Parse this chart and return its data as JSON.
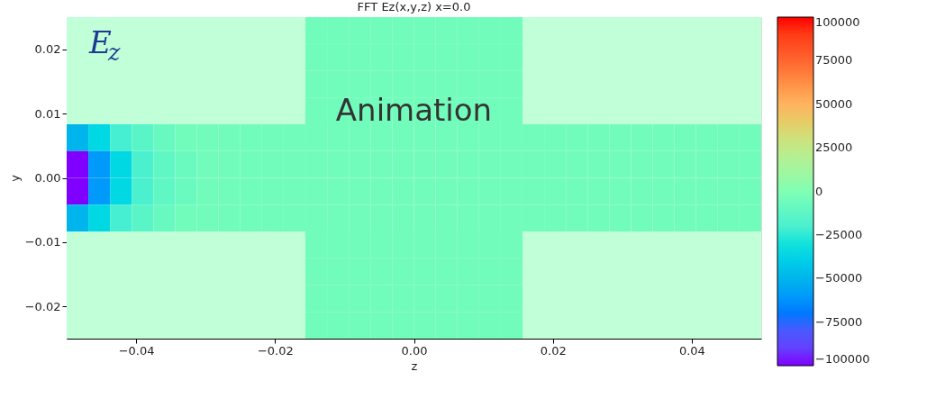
{
  "chart_data": {
    "type": "heatmap",
    "title": "FFT Ez(x,y,z) x=0.0",
    "xlabel": "z",
    "ylabel": "y",
    "x": [
      -0.0484375,
      -0.0453125,
      -0.0421875,
      -0.0390625,
      -0.0359375,
      -0.0328125,
      -0.0296875,
      -0.0265625,
      -0.0234375,
      -0.0203125,
      -0.0171875,
      -0.0140625,
      -0.0109375,
      -0.0078125,
      -0.0046875,
      -0.0015625,
      0.0015625,
      0.0046875,
      0.0078125,
      0.0109375,
      0.0140625,
      0.0171875,
      0.0203125,
      0.0234375,
      0.0265625,
      0.0296875,
      0.0328125,
      0.0359375,
      0.0390625,
      0.0421875,
      0.0453125,
      0.0484375
    ],
    "y": [
      0.022917,
      0.01875,
      0.014583,
      0.010417,
      0.00625,
      0.002083,
      -0.002083,
      -0.00625,
      -0.010417,
      -0.014583,
      -0.01875,
      -0.022917
    ],
    "cells": [
      [
        null,
        null,
        null,
        null,
        null,
        null,
        null,
        null,
        null,
        null,
        null,
        -5000,
        -5000,
        -5000,
        -5000,
        -5000,
        -5000,
        -5000,
        -5000,
        -5000,
        -5000,
        null,
        null,
        null,
        null,
        null,
        null,
        null,
        null,
        null,
        null,
        null
      ],
      [
        null,
        null,
        null,
        null,
        null,
        null,
        null,
        null,
        null,
        null,
        null,
        -5000,
        -5000,
        -5000,
        -5000,
        -5000,
        -5000,
        -5000,
        -5000,
        -5000,
        -5000,
        null,
        null,
        null,
        null,
        null,
        null,
        null,
        null,
        null,
        null,
        null
      ],
      [
        null,
        null,
        null,
        null,
        null,
        null,
        null,
        null,
        null,
        null,
        null,
        -5000,
        -5000,
        -5000,
        -5000,
        -5000,
        -5000,
        -5000,
        -5000,
        -5000,
        -5000,
        null,
        null,
        null,
        null,
        null,
        null,
        null,
        null,
        null,
        null,
        null
      ],
      [
        null,
        null,
        null,
        null,
        null,
        null,
        null,
        null,
        null,
        null,
        null,
        -5000,
        -5000,
        -5000,
        -5000,
        -5000,
        -5000,
        -5000,
        -5000,
        -5000,
        -5000,
        null,
        null,
        null,
        null,
        null,
        null,
        null,
        null,
        null,
        null,
        null
      ],
      [
        -50000,
        -35000,
        -22000,
        -14000,
        -9000,
        -5000,
        -5000,
        -5000,
        -5000,
        -5000,
        -5000,
        -5000,
        -5000,
        -5000,
        -5000,
        -5000,
        -5000,
        -5000,
        -5000,
        -5000,
        -5000,
        -5000,
        -5000,
        -5000,
        -5000,
        -5000,
        -5000,
        -5000,
        -5000,
        -5000,
        -5000,
        -5000
      ],
      [
        -100000,
        -60000,
        -35000,
        -20000,
        -12000,
        -8000,
        -5000,
        -5000,
        -5000,
        -5000,
        -5000,
        -5000,
        -5000,
        -5000,
        -5000,
        -5000,
        -5000,
        -5000,
        -5000,
        -5000,
        -5000,
        -5000,
        -5000,
        -5000,
        -5000,
        -5000,
        -5000,
        -5000,
        -5000,
        -5000,
        -5000,
        -5000
      ],
      [
        -100000,
        -60000,
        -35000,
        -20000,
        -12000,
        -8000,
        -5000,
        -5000,
        -5000,
        -5000,
        -5000,
        -5000,
        -5000,
        -5000,
        -5000,
        -5000,
        -5000,
        -5000,
        -5000,
        -5000,
        -5000,
        -5000,
        -5000,
        -5000,
        -5000,
        -5000,
        -5000,
        -5000,
        -5000,
        -5000,
        -5000,
        -5000
      ],
      [
        -50000,
        -35000,
        -22000,
        -14000,
        -9000,
        -5000,
        -5000,
        -5000,
        -5000,
        -5000,
        -5000,
        -5000,
        -5000,
        -5000,
        -5000,
        -5000,
        -5000,
        -5000,
        -5000,
        -5000,
        -5000,
        -5000,
        -5000,
        -5000,
        -5000,
        -5000,
        -5000,
        -5000,
        -5000,
        -5000,
        -5000,
        -5000
      ],
      [
        null,
        null,
        null,
        null,
        null,
        null,
        null,
        null,
        null,
        null,
        null,
        -5000,
        -5000,
        -5000,
        -5000,
        -5000,
        -5000,
        -5000,
        -5000,
        -5000,
        -5000,
        null,
        null,
        null,
        null,
        null,
        null,
        null,
        null,
        null,
        null,
        null
      ],
      [
        null,
        null,
        null,
        null,
        null,
        null,
        null,
        null,
        null,
        null,
        null,
        -5000,
        -5000,
        -5000,
        -5000,
        -5000,
        -5000,
        -5000,
        -5000,
        -5000,
        -5000,
        null,
        null,
        null,
        null,
        null,
        null,
        null,
        null,
        null,
        null,
        null
      ],
      [
        null,
        null,
        null,
        null,
        null,
        null,
        null,
        null,
        null,
        null,
        null,
        -5000,
        -5000,
        -5000,
        -5000,
        -5000,
        -5000,
        -5000,
        -5000,
        -5000,
        -5000,
        null,
        null,
        null,
        null,
        null,
        null,
        null,
        null,
        null,
        null,
        null
      ],
      [
        null,
        null,
        null,
        null,
        null,
        null,
        null,
        null,
        null,
        null,
        null,
        -5000,
        -5000,
        -5000,
        -5000,
        -5000,
        -5000,
        -5000,
        -5000,
        -5000,
        -5000,
        null,
        null,
        null,
        null,
        null,
        null,
        null,
        null,
        null,
        null,
        null
      ]
    ],
    "xlim": [
      -0.05,
      0.05
    ],
    "xticks": [
      {
        "value": -0.04,
        "label": "−0.04"
      },
      {
        "value": -0.02,
        "label": "−0.02"
      },
      {
        "value": 0,
        "label": "0.00"
      },
      {
        "value": 0.02,
        "label": "0.02"
      },
      {
        "value": 0.04,
        "label": "0.04"
      }
    ],
    "ylim": [
      -0.025,
      0.025
    ],
    "yticks": [
      {
        "value": -0.02,
        "label": "−0.02"
      },
      {
        "value": -0.01,
        "label": "−0.01"
      },
      {
        "value": 0,
        "label": "0.00"
      },
      {
        "value": 0.01,
        "label": "0.01"
      },
      {
        "value": 0.02,
        "label": "0.02"
      }
    ],
    "clim": [
      -100000,
      100000
    ],
    "cticks": [
      {
        "value": -100000,
        "label": "−100000"
      },
      {
        "value": -75000,
        "label": "−75000"
      },
      {
        "value": -50000,
        "label": "−50000"
      },
      {
        "value": -25000,
        "label": "−25000"
      },
      0,
      25000,
      50000,
      75000,
      100000
    ],
    "bands": [
      {
        "axis": "y",
        "from": 0.008333,
        "to": 0.025,
        "color": "#c0ffd8"
      },
      {
        "axis": "y",
        "from": -0.025,
        "to": -0.008333,
        "color": "#c0ffd8"
      }
    ],
    "annotations": [
      "E$_{z}$",
      "Animation"
    ]
  }
}
